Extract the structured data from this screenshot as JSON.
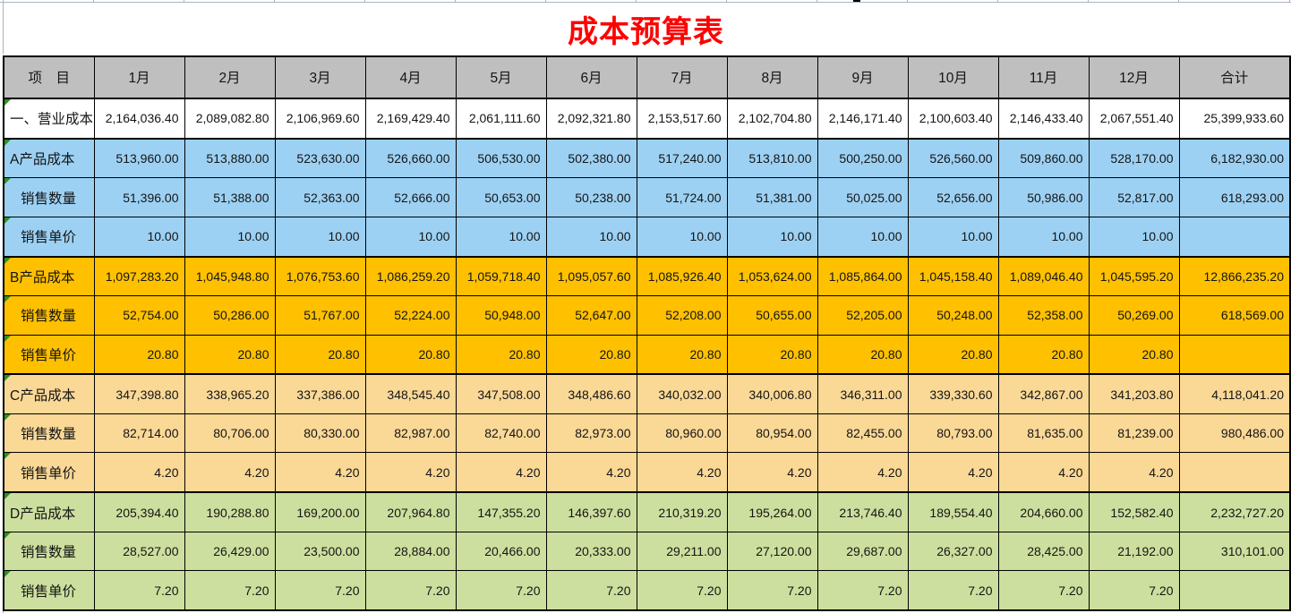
{
  "title": {
    "text": "成本预算表",
    "color": "#FF0000"
  },
  "table": {
    "columns": [
      "项　目",
      "1月",
      "2月",
      "3月",
      "4月",
      "5月",
      "6月",
      "7月",
      "8月",
      "9月",
      "10月",
      "11月",
      "12月",
      "合计"
    ],
    "header_bg": "#BFBFBF",
    "section_colors": {
      "sum": "#FFFFFF",
      "a": "#9DD1F3",
      "b": "#FFC000",
      "c": "#FAD896",
      "d": "#CDDF9E"
    },
    "error_marker_color": "#2F8F25",
    "rows": [
      {
        "label": "一、营业成本",
        "section": "sum",
        "indent": false,
        "group_start": true,
        "values": [
          "2,164,036.40",
          "2,089,082.80",
          "2,106,969.60",
          "2,169,429.40",
          "2,061,111.60",
          "2,092,321.80",
          "2,153,517.60",
          "2,102,704.80",
          "2,146,171.40",
          "2,100,603.40",
          "2,146,433.40",
          "2,067,551.40"
        ],
        "total": "25,399,933.60"
      },
      {
        "label": "A产品成本",
        "section": "a",
        "indent": false,
        "group_start": true,
        "values": [
          "513,960.00",
          "513,880.00",
          "523,630.00",
          "526,660.00",
          "506,530.00",
          "502,380.00",
          "517,240.00",
          "513,810.00",
          "500,250.00",
          "526,560.00",
          "509,860.00",
          "528,170.00"
        ],
        "total": "6,182,930.00"
      },
      {
        "label": "销售数量",
        "section": "a",
        "indent": true,
        "group_start": false,
        "values": [
          "51,396.00",
          "51,388.00",
          "52,363.00",
          "52,666.00",
          "50,653.00",
          "50,238.00",
          "51,724.00",
          "51,381.00",
          "50,025.00",
          "52,656.00",
          "50,986.00",
          "52,817.00"
        ],
        "total": "618,293.00"
      },
      {
        "label": "销售单价",
        "section": "a",
        "indent": true,
        "group_start": false,
        "values": [
          "10.00",
          "10.00",
          "10.00",
          "10.00",
          "10.00",
          "10.00",
          "10.00",
          "10.00",
          "10.00",
          "10.00",
          "10.00",
          "10.00"
        ],
        "total": ""
      },
      {
        "label": "B产品成本",
        "section": "b",
        "indent": false,
        "group_start": true,
        "values": [
          "1,097,283.20",
          "1,045,948.80",
          "1,076,753.60",
          "1,086,259.20",
          "1,059,718.40",
          "1,095,057.60",
          "1,085,926.40",
          "1,053,624.00",
          "1,085,864.00",
          "1,045,158.40",
          "1,089,046.40",
          "1,045,595.20"
        ],
        "total": "12,866,235.20"
      },
      {
        "label": "销售数量",
        "section": "b",
        "indent": true,
        "group_start": false,
        "values": [
          "52,754.00",
          "50,286.00",
          "51,767.00",
          "52,224.00",
          "50,948.00",
          "52,647.00",
          "52,208.00",
          "50,655.00",
          "52,205.00",
          "50,248.00",
          "52,358.00",
          "50,269.00"
        ],
        "total": "618,569.00"
      },
      {
        "label": "销售单价",
        "section": "b",
        "indent": true,
        "group_start": false,
        "values": [
          "20.80",
          "20.80",
          "20.80",
          "20.80",
          "20.80",
          "20.80",
          "20.80",
          "20.80",
          "20.80",
          "20.80",
          "20.80",
          "20.80"
        ],
        "total": ""
      },
      {
        "label": "C产品成本",
        "section": "c",
        "indent": false,
        "group_start": true,
        "values": [
          "347,398.80",
          "338,965.20",
          "337,386.00",
          "348,545.40",
          "347,508.00",
          "348,486.60",
          "340,032.00",
          "340,006.80",
          "346,311.00",
          "339,330.60",
          "342,867.00",
          "341,203.80"
        ],
        "total": "4,118,041.20"
      },
      {
        "label": "销售数量",
        "section": "c",
        "indent": true,
        "group_start": false,
        "values": [
          "82,714.00",
          "80,706.00",
          "80,330.00",
          "82,987.00",
          "82,740.00",
          "82,973.00",
          "80,960.00",
          "80,954.00",
          "82,455.00",
          "80,793.00",
          "81,635.00",
          "81,239.00"
        ],
        "total": "980,486.00"
      },
      {
        "label": "销售单价",
        "section": "c",
        "indent": true,
        "group_start": false,
        "values": [
          "4.20",
          "4.20",
          "4.20",
          "4.20",
          "4.20",
          "4.20",
          "4.20",
          "4.20",
          "4.20",
          "4.20",
          "4.20",
          "4.20"
        ],
        "total": ""
      },
      {
        "label": "D产品成本",
        "section": "d",
        "indent": false,
        "group_start": true,
        "values": [
          "205,394.40",
          "190,288.80",
          "169,200.00",
          "207,964.80",
          "147,355.20",
          "146,397.60",
          "210,319.20",
          "195,264.00",
          "213,746.40",
          "189,554.40",
          "204,660.00",
          "152,582.40"
        ],
        "total": "2,232,727.20"
      },
      {
        "label": "销售数量",
        "section": "d",
        "indent": true,
        "group_start": false,
        "values": [
          "28,527.00",
          "26,429.00",
          "23,500.00",
          "28,884.00",
          "20,466.00",
          "20,333.00",
          "29,211.00",
          "27,120.00",
          "29,687.00",
          "26,327.00",
          "28,425.00",
          "21,192.00"
        ],
        "total": "310,101.00"
      },
      {
        "label": "销售单价",
        "section": "d",
        "indent": true,
        "group_start": false,
        "values": [
          "7.20",
          "7.20",
          "7.20",
          "7.20",
          "7.20",
          "7.20",
          "7.20",
          "7.20",
          "7.20",
          "7.20",
          "7.20",
          "7.20"
        ],
        "total": ""
      }
    ]
  }
}
